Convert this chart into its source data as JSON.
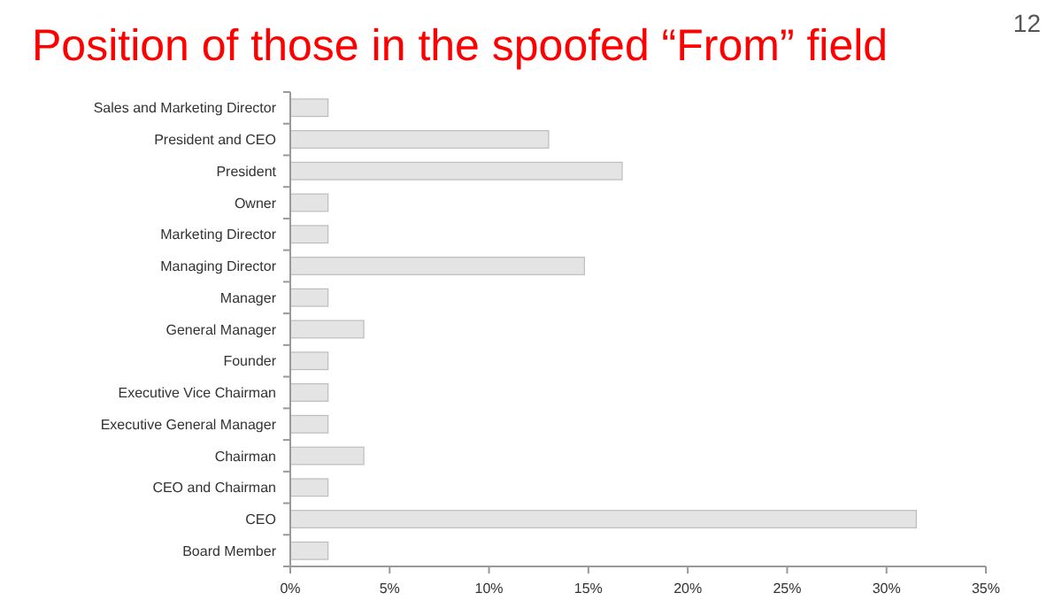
{
  "chart_data": {
    "type": "bar",
    "orientation": "horizontal",
    "title": "Position of those in the spoofed “From” field",
    "categories": [
      "Sales and Marketing Director",
      "President and CEO",
      "President",
      "Owner",
      "Marketing Director",
      "Managing Director",
      "Manager",
      "General Manager",
      "Founder",
      "Executive Vice Chairman",
      "Executive General Manager",
      "Chairman",
      "CEO and Chairman",
      "CEO",
      "Board Member"
    ],
    "values": [
      1.9,
      13,
      16.7,
      1.9,
      1.9,
      14.8,
      1.9,
      3.7,
      1.9,
      1.9,
      1.9,
      3.7,
      1.9,
      31.5,
      1.9
    ],
    "color": "#e4e4e4",
    "xlim": [
      0,
      35
    ],
    "xticks": [
      {
        "value": 0,
        "label": "0%"
      },
      {
        "value": 5,
        "label": "5%"
      },
      {
        "value": 10,
        "label": "10%"
      },
      {
        "value": 15,
        "label": "15%"
      },
      {
        "value": 20,
        "label": "20%"
      },
      {
        "value": 25,
        "label": "25%"
      },
      {
        "value": 30,
        "label": "30%"
      },
      {
        "value": 35,
        "label": "35%"
      }
    ],
    "grid": false,
    "annotations": [
      "12"
    ]
  }
}
